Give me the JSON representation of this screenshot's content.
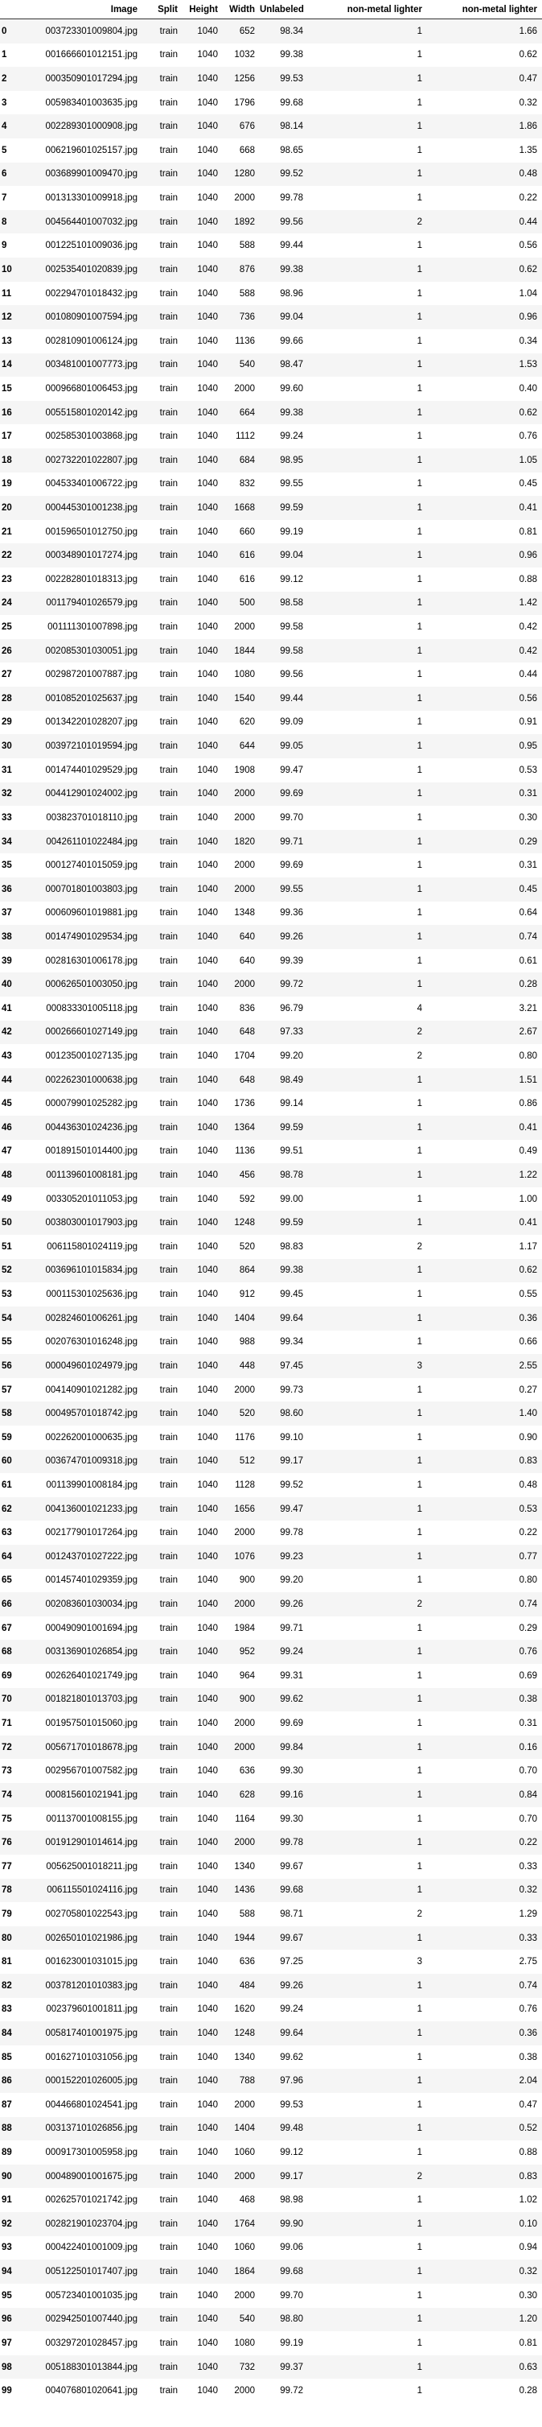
{
  "columns": [
    "",
    "Image",
    "Split",
    "Height",
    "Width",
    "Unlabeled",
    "non-metal lighter",
    "non-metal lighter"
  ],
  "rows": [
    [
      "0",
      "003723301009804.jpg",
      "train",
      "1040",
      "652",
      "98.34",
      "1",
      "1.66"
    ],
    [
      "1",
      "001666601012151.jpg",
      "train",
      "1040",
      "1032",
      "99.38",
      "1",
      "0.62"
    ],
    [
      "2",
      "000350901017294.jpg",
      "train",
      "1040",
      "1256",
      "99.53",
      "1",
      "0.47"
    ],
    [
      "3",
      "005983401003635.jpg",
      "train",
      "1040",
      "1796",
      "99.68",
      "1",
      "0.32"
    ],
    [
      "4",
      "002289301000908.jpg",
      "train",
      "1040",
      "676",
      "98.14",
      "1",
      "1.86"
    ],
    [
      "5",
      "006219601025157.jpg",
      "train",
      "1040",
      "668",
      "98.65",
      "1",
      "1.35"
    ],
    [
      "6",
      "003689901009470.jpg",
      "train",
      "1040",
      "1280",
      "99.52",
      "1",
      "0.48"
    ],
    [
      "7",
      "001313301009918.jpg",
      "train",
      "1040",
      "2000",
      "99.78",
      "1",
      "0.22"
    ],
    [
      "8",
      "004564401007032.jpg",
      "train",
      "1040",
      "1892",
      "99.56",
      "2",
      "0.44"
    ],
    [
      "9",
      "001225101009036.jpg",
      "train",
      "1040",
      "588",
      "99.44",
      "1",
      "0.56"
    ],
    [
      "10",
      "002535401020839.jpg",
      "train",
      "1040",
      "876",
      "99.38",
      "1",
      "0.62"
    ],
    [
      "11",
      "002294701018432.jpg",
      "train",
      "1040",
      "588",
      "98.96",
      "1",
      "1.04"
    ],
    [
      "12",
      "001080901007594.jpg",
      "train",
      "1040",
      "736",
      "99.04",
      "1",
      "0.96"
    ],
    [
      "13",
      "002810901006124.jpg",
      "train",
      "1040",
      "1136",
      "99.66",
      "1",
      "0.34"
    ],
    [
      "14",
      "003481001007773.jpg",
      "train",
      "1040",
      "540",
      "98.47",
      "1",
      "1.53"
    ],
    [
      "15",
      "000966801006453.jpg",
      "train",
      "1040",
      "2000",
      "99.60",
      "1",
      "0.40"
    ],
    [
      "16",
      "005515801020142.jpg",
      "train",
      "1040",
      "664",
      "99.38",
      "1",
      "0.62"
    ],
    [
      "17",
      "002585301003868.jpg",
      "train",
      "1040",
      "1112",
      "99.24",
      "1",
      "0.76"
    ],
    [
      "18",
      "002732201022807.jpg",
      "train",
      "1040",
      "684",
      "98.95",
      "1",
      "1.05"
    ],
    [
      "19",
      "004533401006722.jpg",
      "train",
      "1040",
      "832",
      "99.55",
      "1",
      "0.45"
    ],
    [
      "20",
      "000445301001238.jpg",
      "train",
      "1040",
      "1668",
      "99.59",
      "1",
      "0.41"
    ],
    [
      "21",
      "001596501012750.jpg",
      "train",
      "1040",
      "660",
      "99.19",
      "1",
      "0.81"
    ],
    [
      "22",
      "000348901017274.jpg",
      "train",
      "1040",
      "616",
      "99.04",
      "1",
      "0.96"
    ],
    [
      "23",
      "002282801018313.jpg",
      "train",
      "1040",
      "616",
      "99.12",
      "1",
      "0.88"
    ],
    [
      "24",
      "001179401026579.jpg",
      "train",
      "1040",
      "500",
      "98.58",
      "1",
      "1.42"
    ],
    [
      "25",
      "001111301007898.jpg",
      "train",
      "1040",
      "2000",
      "99.58",
      "1",
      "0.42"
    ],
    [
      "26",
      "002085301030051.jpg",
      "train",
      "1040",
      "1844",
      "99.58",
      "1",
      "0.42"
    ],
    [
      "27",
      "002987201007887.jpg",
      "train",
      "1040",
      "1080",
      "99.56",
      "1",
      "0.44"
    ],
    [
      "28",
      "001085201025637.jpg",
      "train",
      "1040",
      "1540",
      "99.44",
      "1",
      "0.56"
    ],
    [
      "29",
      "001342201028207.jpg",
      "train",
      "1040",
      "620",
      "99.09",
      "1",
      "0.91"
    ],
    [
      "30",
      "003972101019594.jpg",
      "train",
      "1040",
      "644",
      "99.05",
      "1",
      "0.95"
    ],
    [
      "31",
      "001474401029529.jpg",
      "train",
      "1040",
      "1908",
      "99.47",
      "1",
      "0.53"
    ],
    [
      "32",
      "004412901024002.jpg",
      "train",
      "1040",
      "2000",
      "99.69",
      "1",
      "0.31"
    ],
    [
      "33",
      "003823701018110.jpg",
      "train",
      "1040",
      "2000",
      "99.70",
      "1",
      "0.30"
    ],
    [
      "34",
      "004261101022484.jpg",
      "train",
      "1040",
      "1820",
      "99.71",
      "1",
      "0.29"
    ],
    [
      "35",
      "000127401015059.jpg",
      "train",
      "1040",
      "2000",
      "99.69",
      "1",
      "0.31"
    ],
    [
      "36",
      "000701801003803.jpg",
      "train",
      "1040",
      "2000",
      "99.55",
      "1",
      "0.45"
    ],
    [
      "37",
      "000609601019881.jpg",
      "train",
      "1040",
      "1348",
      "99.36",
      "1",
      "0.64"
    ],
    [
      "38",
      "001474901029534.jpg",
      "train",
      "1040",
      "640",
      "99.26",
      "1",
      "0.74"
    ],
    [
      "39",
      "002816301006178.jpg",
      "train",
      "1040",
      "640",
      "99.39",
      "1",
      "0.61"
    ],
    [
      "40",
      "000626501003050.jpg",
      "train",
      "1040",
      "2000",
      "99.72",
      "1",
      "0.28"
    ],
    [
      "41",
      "000833301005118.jpg",
      "train",
      "1040",
      "836",
      "96.79",
      "4",
      "3.21"
    ],
    [
      "42",
      "000266601027149.jpg",
      "train",
      "1040",
      "648",
      "97.33",
      "2",
      "2.67"
    ],
    [
      "43",
      "001235001027135.jpg",
      "train",
      "1040",
      "1704",
      "99.20",
      "2",
      "0.80"
    ],
    [
      "44",
      "002262301000638.jpg",
      "train",
      "1040",
      "648",
      "98.49",
      "1",
      "1.51"
    ],
    [
      "45",
      "000079901025282.jpg",
      "train",
      "1040",
      "1736",
      "99.14",
      "1",
      "0.86"
    ],
    [
      "46",
      "004436301024236.jpg",
      "train",
      "1040",
      "1364",
      "99.59",
      "1",
      "0.41"
    ],
    [
      "47",
      "001891501014400.jpg",
      "train",
      "1040",
      "1136",
      "99.51",
      "1",
      "0.49"
    ],
    [
      "48",
      "001139601008181.jpg",
      "train",
      "1040",
      "456",
      "98.78",
      "1",
      "1.22"
    ],
    [
      "49",
      "003305201011053.jpg",
      "train",
      "1040",
      "592",
      "99.00",
      "1",
      "1.00"
    ],
    [
      "50",
      "003803001017903.jpg",
      "train",
      "1040",
      "1248",
      "99.59",
      "1",
      "0.41"
    ],
    [
      "51",
      "006115801024119.jpg",
      "train",
      "1040",
      "520",
      "98.83",
      "2",
      "1.17"
    ],
    [
      "52",
      "003696101015834.jpg",
      "train",
      "1040",
      "864",
      "99.38",
      "1",
      "0.62"
    ],
    [
      "53",
      "000115301025636.jpg",
      "train",
      "1040",
      "912",
      "99.45",
      "1",
      "0.55"
    ],
    [
      "54",
      "002824601006261.jpg",
      "train",
      "1040",
      "1404",
      "99.64",
      "1",
      "0.36"
    ],
    [
      "55",
      "002076301016248.jpg",
      "train",
      "1040",
      "988",
      "99.34",
      "1",
      "0.66"
    ],
    [
      "56",
      "000049601024979.jpg",
      "train",
      "1040",
      "448",
      "97.45",
      "3",
      "2.55"
    ],
    [
      "57",
      "004140901021282.jpg",
      "train",
      "1040",
      "2000",
      "99.73",
      "1",
      "0.27"
    ],
    [
      "58",
      "000495701018742.jpg",
      "train",
      "1040",
      "520",
      "98.60",
      "1",
      "1.40"
    ],
    [
      "59",
      "002262001000635.jpg",
      "train",
      "1040",
      "1176",
      "99.10",
      "1",
      "0.90"
    ],
    [
      "60",
      "003674701009318.jpg",
      "train",
      "1040",
      "512",
      "99.17",
      "1",
      "0.83"
    ],
    [
      "61",
      "001139901008184.jpg",
      "train",
      "1040",
      "1128",
      "99.52",
      "1",
      "0.48"
    ],
    [
      "62",
      "004136001021233.jpg",
      "train",
      "1040",
      "1656",
      "99.47",
      "1",
      "0.53"
    ],
    [
      "63",
      "002177901017264.jpg",
      "train",
      "1040",
      "2000",
      "99.78",
      "1",
      "0.22"
    ],
    [
      "64",
      "001243701027222.jpg",
      "train",
      "1040",
      "1076",
      "99.23",
      "1",
      "0.77"
    ],
    [
      "65",
      "001457401029359.jpg",
      "train",
      "1040",
      "900",
      "99.20",
      "1",
      "0.80"
    ],
    [
      "66",
      "002083601030034.jpg",
      "train",
      "1040",
      "2000",
      "99.26",
      "2",
      "0.74"
    ],
    [
      "67",
      "000490901001694.jpg",
      "train",
      "1040",
      "1984",
      "99.71",
      "1",
      "0.29"
    ],
    [
      "68",
      "003136901026854.jpg",
      "train",
      "1040",
      "952",
      "99.24",
      "1",
      "0.76"
    ],
    [
      "69",
      "002626401021749.jpg",
      "train",
      "1040",
      "964",
      "99.31",
      "1",
      "0.69"
    ],
    [
      "70",
      "001821801013703.jpg",
      "train",
      "1040",
      "900",
      "99.62",
      "1",
      "0.38"
    ],
    [
      "71",
      "001957501015060.jpg",
      "train",
      "1040",
      "2000",
      "99.69",
      "1",
      "0.31"
    ],
    [
      "72",
      "005671701018678.jpg",
      "train",
      "1040",
      "2000",
      "99.84",
      "1",
      "0.16"
    ],
    [
      "73",
      "002956701007582.jpg",
      "train",
      "1040",
      "636",
      "99.30",
      "1",
      "0.70"
    ],
    [
      "74",
      "000815601021941.jpg",
      "train",
      "1040",
      "628",
      "99.16",
      "1",
      "0.84"
    ],
    [
      "75",
      "001137001008155.jpg",
      "train",
      "1040",
      "1164",
      "99.30",
      "1",
      "0.70"
    ],
    [
      "76",
      "001912901014614.jpg",
      "train",
      "1040",
      "2000",
      "99.78",
      "1",
      "0.22"
    ],
    [
      "77",
      "005625001018211.jpg",
      "train",
      "1040",
      "1340",
      "99.67",
      "1",
      "0.33"
    ],
    [
      "78",
      "006115501024116.jpg",
      "train",
      "1040",
      "1436",
      "99.68",
      "1",
      "0.32"
    ],
    [
      "79",
      "002705801022543.jpg",
      "train",
      "1040",
      "588",
      "98.71",
      "2",
      "1.29"
    ],
    [
      "80",
      "002650101021986.jpg",
      "train",
      "1040",
      "1944",
      "99.67",
      "1",
      "0.33"
    ],
    [
      "81",
      "001623001031015.jpg",
      "train",
      "1040",
      "636",
      "97.25",
      "3",
      "2.75"
    ],
    [
      "82",
      "003781201010383.jpg",
      "train",
      "1040",
      "484",
      "99.26",
      "1",
      "0.74"
    ],
    [
      "83",
      "002379601001811.jpg",
      "train",
      "1040",
      "1620",
      "99.24",
      "1",
      "0.76"
    ],
    [
      "84",
      "005817401001975.jpg",
      "train",
      "1040",
      "1248",
      "99.64",
      "1",
      "0.36"
    ],
    [
      "85",
      "001627101031056.jpg",
      "train",
      "1040",
      "1340",
      "99.62",
      "1",
      "0.38"
    ],
    [
      "86",
      "000152201026005.jpg",
      "train",
      "1040",
      "788",
      "97.96",
      "1",
      "2.04"
    ],
    [
      "87",
      "004466801024541.jpg",
      "train",
      "1040",
      "2000",
      "99.53",
      "1",
      "0.47"
    ],
    [
      "88",
      "003137101026856.jpg",
      "train",
      "1040",
      "1404",
      "99.48",
      "1",
      "0.52"
    ],
    [
      "89",
      "000917301005958.jpg",
      "train",
      "1040",
      "1060",
      "99.12",
      "1",
      "0.88"
    ],
    [
      "90",
      "000489001001675.jpg",
      "train",
      "1040",
      "2000",
      "99.17",
      "2",
      "0.83"
    ],
    [
      "91",
      "002625701021742.jpg",
      "train",
      "1040",
      "468",
      "98.98",
      "1",
      "1.02"
    ],
    [
      "92",
      "002821901023704.jpg",
      "train",
      "1040",
      "1764",
      "99.90",
      "1",
      "0.10"
    ],
    [
      "93",
      "000422401001009.jpg",
      "train",
      "1040",
      "1060",
      "99.06",
      "1",
      "0.94"
    ],
    [
      "94",
      "005122501017407.jpg",
      "train",
      "1040",
      "1864",
      "99.68",
      "1",
      "0.32"
    ],
    [
      "95",
      "005723401001035.jpg",
      "train",
      "1040",
      "2000",
      "99.70",
      "1",
      "0.30"
    ],
    [
      "96",
      "002942501007440.jpg",
      "train",
      "1040",
      "540",
      "98.80",
      "1",
      "1.20"
    ],
    [
      "97",
      "003297201028457.jpg",
      "train",
      "1040",
      "1080",
      "99.19",
      "1",
      "0.81"
    ],
    [
      "98",
      "005188301013844.jpg",
      "train",
      "1040",
      "732",
      "99.37",
      "1",
      "0.63"
    ],
    [
      "99",
      "004076801020641.jpg",
      "train",
      "1040",
      "2000",
      "99.72",
      "1",
      "0.28"
    ]
  ]
}
